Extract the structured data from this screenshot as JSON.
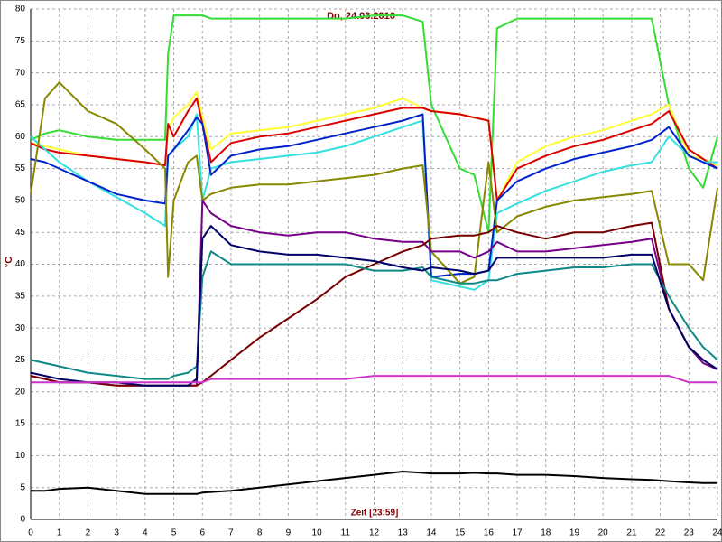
{
  "chart_data": {
    "type": "line",
    "title": "Do, 24.03.2016",
    "xlabel": "Zeit [23:59]",
    "ylabel": "°C",
    "x": [
      0,
      0.5,
      1,
      2,
      3,
      4,
      4.7,
      4.8,
      5,
      5.5,
      5.8,
      6,
      6.3,
      7,
      8,
      9,
      10,
      11,
      12,
      13,
      13.7,
      14,
      15,
      15.5,
      16,
      16.3,
      17,
      18,
      19,
      20,
      21,
      21.7,
      22.3,
      23,
      23.5,
      24
    ],
    "xlim": [
      0,
      24
    ],
    "xticks": [
      0,
      1,
      2,
      3,
      4,
      5,
      6,
      7,
      8,
      9,
      10,
      11,
      12,
      13,
      14,
      15,
      16,
      17,
      18,
      19,
      20,
      21,
      22,
      23,
      24
    ],
    "ylim": [
      0,
      80
    ],
    "yticks": [
      0,
      5,
      10,
      15,
      20,
      25,
      30,
      35,
      40,
      45,
      50,
      55,
      60,
      65,
      70,
      75,
      80
    ],
    "grid": true,
    "series": [
      {
        "color": "#33dd33",
        "values": [
          59.5,
          60.5,
          61,
          60,
          59.5,
          59.5,
          59.5,
          73,
          79,
          79,
          79,
          79,
          78.5,
          78.5,
          78.5,
          78.5,
          78.5,
          78.5,
          79,
          79,
          78,
          65,
          55,
          54,
          45,
          77,
          78.5,
          78.5,
          78.5,
          78.5,
          78.5,
          78.5,
          65,
          55,
          52,
          60
        ]
      },
      {
        "color": "#ffff33",
        "values": [
          59,
          58.5,
          58,
          57,
          56.5,
          56,
          55.5,
          61,
          63,
          65,
          67,
          63,
          58,
          60.5,
          61,
          61.5,
          62.5,
          63.5,
          64.5,
          66,
          64.5,
          64,
          63.5,
          63,
          62.5,
          50,
          56,
          58.5,
          60,
          61,
          62.5,
          63.5,
          65,
          57,
          56.5,
          55.5
        ]
      },
      {
        "color": "#dd0000",
        "values": [
          59,
          58,
          57.5,
          57,
          56.5,
          56,
          55.5,
          62,
          60,
          64,
          66,
          62,
          56,
          59,
          60,
          60.5,
          61.5,
          62.5,
          63.5,
          64.5,
          64.5,
          64,
          63.5,
          63,
          62.5,
          50,
          55,
          57,
          58.5,
          59.5,
          61,
          62,
          64,
          58,
          56.5,
          55
        ]
      },
      {
        "color": "#33e0e0",
        "values": [
          60,
          58,
          56,
          53,
          50.5,
          48,
          46,
          57,
          58,
          60,
          63.5,
          50,
          55,
          56,
          56.5,
          57,
          57.5,
          58.5,
          60,
          61.5,
          62.5,
          37.5,
          36.5,
          36,
          37.5,
          48,
          49.5,
          51.5,
          53,
          54.5,
          55.5,
          56,
          60,
          57,
          56,
          56
        ]
      },
      {
        "color": "#0022cc",
        "values": [
          56.5,
          56,
          55,
          53,
          51,
          50,
          49.5,
          57,
          58,
          61,
          63,
          62,
          54,
          57,
          58,
          58.5,
          59.5,
          60.5,
          61.5,
          62.5,
          63.5,
          38,
          38.5,
          38.5,
          39,
          50,
          53,
          55,
          56.5,
          57.5,
          58.5,
          59.5,
          61.5,
          57,
          56,
          55
        ]
      },
      {
        "color": "#888800",
        "values": [
          51,
          66,
          68.5,
          64,
          62,
          58,
          55,
          38,
          50,
          56,
          57,
          50,
          51,
          52,
          52.5,
          52.5,
          53,
          53.5,
          54,
          55,
          55.5,
          42,
          37,
          38,
          56,
          45,
          47.5,
          49,
          50,
          50.5,
          51,
          51.5,
          40,
          40,
          37.5,
          52
        ]
      },
      {
        "color": "#770088",
        "values": [
          22.5,
          22,
          21.5,
          21.5,
          21,
          21,
          21,
          21,
          21,
          21,
          21,
          50,
          48,
          46,
          45,
          44.5,
          45,
          45,
          44,
          43.5,
          43.5,
          42,
          42,
          41,
          42,
          43.5,
          42,
          42,
          42.5,
          43,
          43.5,
          44,
          33,
          27,
          24.5,
          23.5
        ]
      },
      {
        "color": "#770000",
        "values": [
          22.5,
          22,
          21.5,
          21.5,
          21,
          21,
          21,
          21,
          21,
          21,
          21,
          21.5,
          22.5,
          25,
          28.5,
          31.5,
          34.5,
          38,
          40,
          42,
          43,
          44,
          44.5,
          44.5,
          45,
          46,
          45,
          44,
          45,
          45,
          46,
          46.5,
          33,
          27,
          25,
          23.5
        ]
      },
      {
        "color": "#118888",
        "values": [
          25,
          24.5,
          24,
          23,
          22.5,
          22,
          22,
          22,
          22.5,
          23,
          24,
          38,
          42,
          40,
          40,
          40,
          40,
          40,
          39,
          39,
          39.5,
          38,
          37,
          37,
          37.5,
          37.5,
          38.5,
          39,
          39.5,
          39.5,
          40,
          40,
          35,
          30,
          27,
          25
        ]
      },
      {
        "color": "#000066",
        "values": [
          23,
          22.5,
          22,
          21.5,
          21.5,
          21,
          21,
          21,
          21,
          21,
          22,
          44,
          46,
          43,
          42,
          41.5,
          41.5,
          41,
          40.5,
          39.5,
          39,
          39.5,
          39,
          38.5,
          39,
          41,
          41,
          41,
          41,
          41,
          41.5,
          41.5,
          33,
          27,
          25,
          23.5
        ]
      },
      {
        "color": "#cc33cc",
        "values": [
          21.5,
          21.5,
          21.5,
          21.5,
          21.5,
          21.5,
          21.5,
          21.5,
          21.5,
          21.5,
          21.5,
          21.5,
          22,
          22,
          22,
          22,
          22,
          22,
          22.5,
          22.5,
          22.5,
          22.5,
          22.5,
          22.5,
          22.5,
          22.5,
          22.5,
          22.5,
          22.5,
          22.5,
          22.5,
          22.5,
          22.5,
          21.5,
          21.5,
          21.5
        ]
      },
      {
        "color": "#000000",
        "values": [
          4.5,
          4.5,
          4.8,
          5,
          4.5,
          4,
          4,
          4,
          4,
          4,
          4,
          4.2,
          4.3,
          4.5,
          5,
          5.5,
          6,
          6.5,
          7,
          7.5,
          7.3,
          7.2,
          7.2,
          7.3,
          7.2,
          7.2,
          7,
          7,
          6.8,
          6.5,
          6.3,
          6.2,
          6,
          5.8,
          5.7,
          5.7
        ]
      }
    ]
  }
}
